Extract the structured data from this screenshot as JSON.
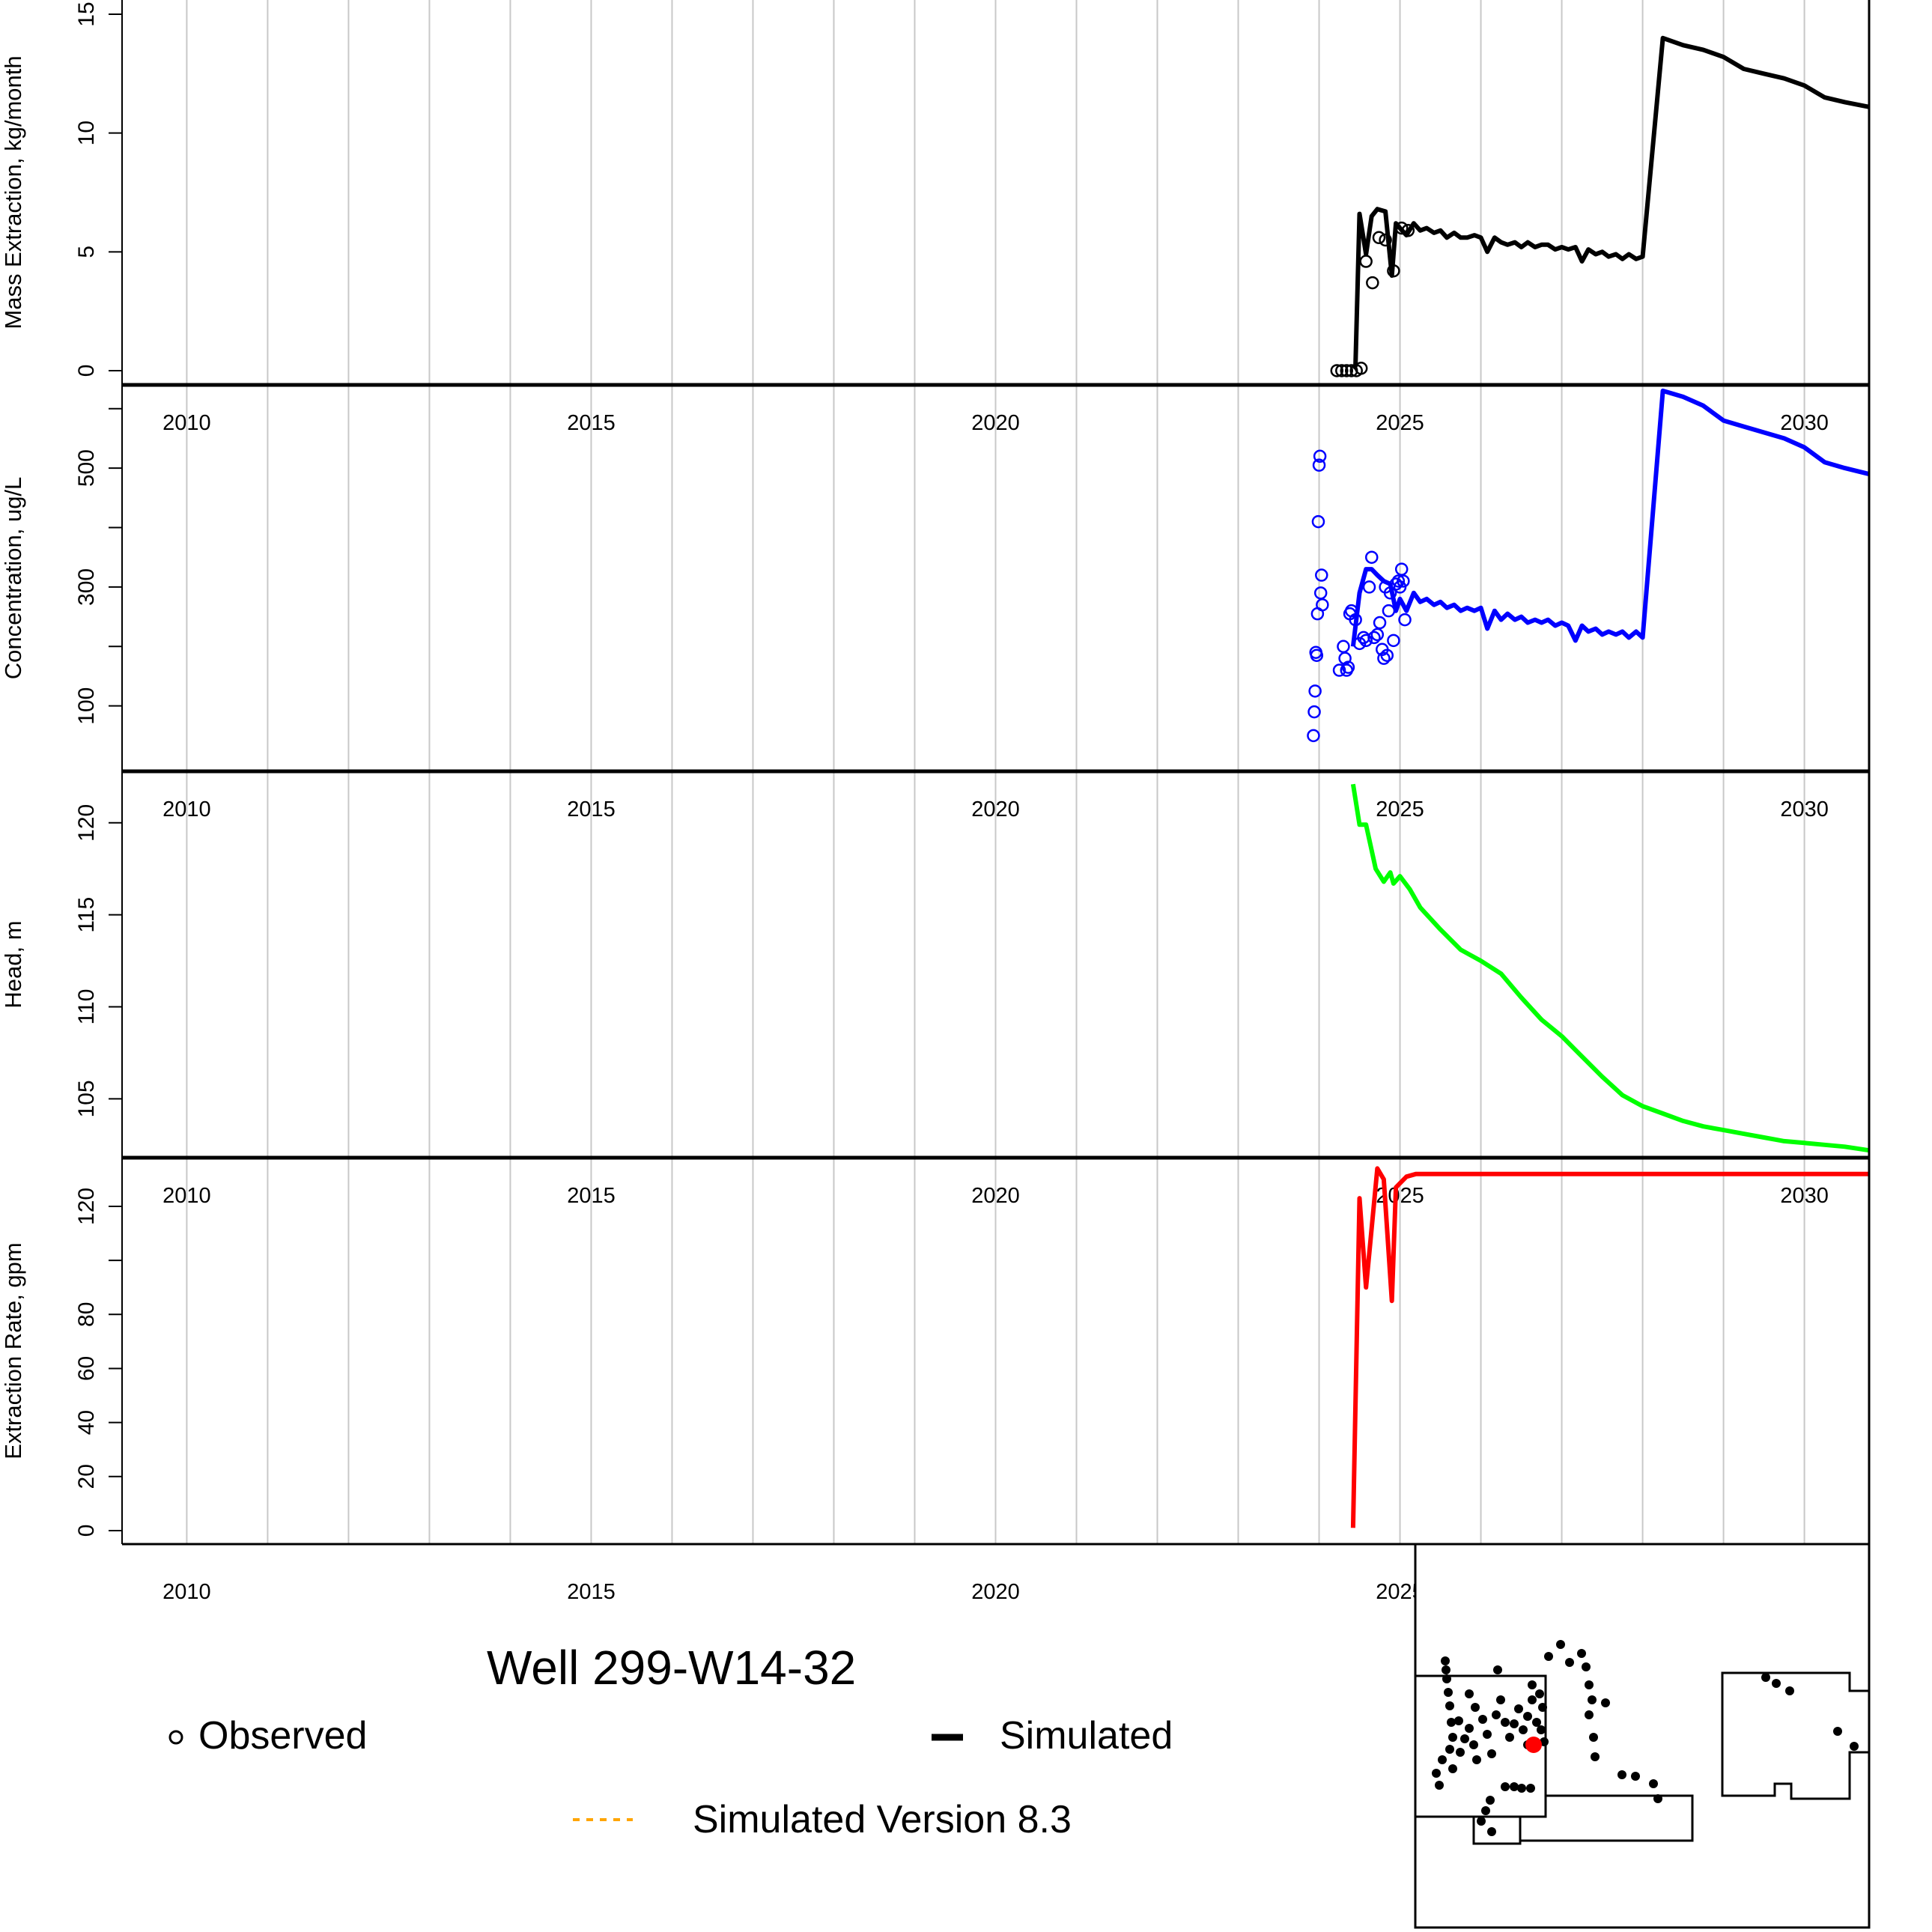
{
  "title": "Well 299-W14-32",
  "legend": {
    "observed": "Observed",
    "simulated": "Simulated",
    "simulated_v83": "Simulated Version 8.3",
    "v83_color": "#FFA500"
  },
  "year_labels": [
    "2010",
    "2015",
    "2020",
    "2025",
    "2030"
  ],
  "chart_data": [
    {
      "type": "line",
      "ylabel": "Mass Extraction, kg/month",
      "xlim": [
        2009.2,
        2030.8
      ],
      "ylim": [
        -0.6,
        15.6
      ],
      "yticks": [
        0,
        5,
        10,
        15
      ],
      "ytick_labels": [
        "0",
        "5",
        "10",
        "15"
      ],
      "grid": "vertical-yearly",
      "color": "#000000",
      "observed": {
        "x": [
          2024.22,
          2024.28,
          2024.34,
          2024.4,
          2024.46,
          2024.52,
          2024.58,
          2024.66,
          2024.74,
          2024.82,
          2024.92,
          2025.02,
          2025.1
        ],
        "y": [
          0.0,
          0.0,
          0.0,
          0.0,
          0.0,
          0.1,
          4.6,
          3.7,
          5.6,
          5.5,
          4.2,
          6.0,
          5.9
        ]
      },
      "simulated": {
        "x": [
          2024.42,
          2024.45,
          2024.5,
          2024.58,
          2024.65,
          2024.72,
          2024.82,
          2024.9,
          2024.95,
          2025.0,
          2025.08,
          2025.17,
          2025.25,
          2025.33,
          2025.42,
          2025.5,
          2025.58,
          2025.67,
          2025.75,
          2025.83,
          2025.92,
          2026.0,
          2026.08,
          2026.17,
          2026.25,
          2026.33,
          2026.42,
          2026.5,
          2026.58,
          2026.67,
          2026.75,
          2026.83,
          2026.92,
          2027.0,
          2027.08,
          2027.17,
          2027.25,
          2027.33,
          2027.42,
          2027.5,
          2027.58,
          2027.67,
          2027.75,
          2027.83,
          2027.92,
          2028.0,
          2028.25,
          2028.5,
          2028.75,
          2029.0,
          2029.25,
          2029.5,
          2029.75,
          2030.0,
          2030.25,
          2030.5,
          2030.8
        ],
        "y": [
          0.1,
          0.2,
          6.6,
          4.9,
          6.5,
          6.8,
          6.7,
          4.0,
          6.2,
          6.0,
          5.7,
          6.2,
          5.9,
          6.0,
          5.8,
          5.9,
          5.6,
          5.8,
          5.6,
          5.6,
          5.7,
          5.6,
          5.0,
          5.6,
          5.4,
          5.3,
          5.4,
          5.2,
          5.4,
          5.2,
          5.3,
          5.3,
          5.1,
          5.2,
          5.1,
          5.2,
          4.6,
          5.1,
          4.9,
          5.0,
          4.8,
          4.9,
          4.7,
          4.9,
          4.7,
          4.8,
          14.0,
          13.7,
          13.5,
          13.2,
          12.7,
          12.5,
          12.3,
          12.0,
          11.5,
          11.3,
          11.1
        ]
      }
    },
    {
      "type": "line",
      "ylabel": "Concentration, ug/L",
      "xlim": [
        2009.2,
        2030.8
      ],
      "ylim": [
        -10,
        640
      ],
      "yticks": [
        100,
        200,
        300,
        400,
        500,
        600
      ],
      "ytick_labels": [
        "100",
        "",
        "300",
        "",
        "500",
        ""
      ],
      "grid": "vertical-yearly",
      "color": "#0000FF",
      "observed": {
        "x": [
          2023.93,
          2023.94,
          2023.95,
          2023.96,
          2023.97,
          2023.98,
          2023.99,
          2024.0,
          2024.01,
          2024.02,
          2024.03,
          2024.04,
          2024.25,
          2024.3,
          2024.32,
          2024.34,
          2024.36,
          2024.38,
          2024.4,
          2024.45,
          2024.5,
          2024.55,
          2024.58,
          2024.62,
          2024.65,
          2024.68,
          2024.72,
          2024.75,
          2024.78,
          2024.8,
          2024.82,
          2024.84,
          2024.86,
          2024.88,
          2024.92,
          2024.95,
          2024.98,
          2025.0,
          2025.02,
          2025.04,
          2025.06
        ],
        "y": [
          50,
          90,
          125,
          190,
          185,
          255,
          410,
          505,
          520,
          290,
          320,
          270,
          160,
          200,
          180,
          160,
          165,
          255,
          260,
          245,
          205,
          215,
          210,
          300,
          350,
          215,
          220,
          240,
          195,
          180,
          300,
          185,
          260,
          290,
          210,
          305,
          310,
          300,
          330,
          310,
          245
        ],
        "y_note": "scale runs 100-600 (ticks 100,300,500 labeled)"
      },
      "simulated": {
        "x": [
          2024.42,
          2024.5,
          2024.58,
          2024.65,
          2024.72,
          2024.8,
          2024.88,
          2024.95,
          2025.0,
          2025.08,
          2025.17,
          2025.25,
          2025.33,
          2025.42,
          2025.5,
          2025.58,
          2025.67,
          2025.75,
          2025.83,
          2025.92,
          2026.0,
          2026.08,
          2026.17,
          2026.25,
          2026.33,
          2026.42,
          2026.5,
          2026.58,
          2026.67,
          2026.75,
          2026.83,
          2026.92,
          2027.0,
          2027.08,
          2027.17,
          2027.25,
          2027.33,
          2027.42,
          2027.5,
          2027.58,
          2027.67,
          2027.75,
          2027.83,
          2027.92,
          2028.0,
          2028.25,
          2028.5,
          2028.75,
          2029.0,
          2029.25,
          2029.5,
          2029.75,
          2030.0,
          2030.25,
          2030.5,
          2030.8
        ],
        "y": [
          200,
          290,
          330,
          330,
          320,
          310,
          305,
          260,
          280,
          260,
          290,
          275,
          280,
          270,
          275,
          265,
          270,
          260,
          265,
          260,
          265,
          230,
          260,
          245,
          255,
          245,
          250,
          240,
          245,
          240,
          245,
          235,
          240,
          235,
          210,
          235,
          225,
          230,
          220,
          225,
          220,
          225,
          215,
          225,
          215,
          630,
          620,
          605,
          580,
          570,
          560,
          550,
          535,
          510,
          500,
          490
        ]
      }
    },
    {
      "type": "line",
      "ylabel": "Head, m",
      "xlim": [
        2009.2,
        2030.8
      ],
      "ylim": [
        101.8,
        122.8
      ],
      "yticks": [
        105,
        110,
        115,
        120
      ],
      "ytick_labels": [
        "105",
        "110",
        "115",
        "120"
      ],
      "grid": "vertical-yearly",
      "color": "#00FF00",
      "simulated": {
        "x": [
          2024.42,
          2024.5,
          2024.58,
          2024.7,
          2024.8,
          2024.88,
          2024.92,
          2025.0,
          2025.12,
          2025.25,
          2025.5,
          2025.75,
          2026.0,
          2026.25,
          2026.5,
          2026.75,
          2027.0,
          2027.25,
          2027.5,
          2027.75,
          2028.0,
          2028.25,
          2028.5,
          2028.75,
          2029.0,
          2029.25,
          2029.5,
          2029.75,
          2030.0,
          2030.25,
          2030.5,
          2030.8
        ],
        "y": [
          122.1,
          119.9,
          119.9,
          117.5,
          116.8,
          117.3,
          116.7,
          117.1,
          116.4,
          115.4,
          114.2,
          113.1,
          112.5,
          111.8,
          110.5,
          109.3,
          108.4,
          107.3,
          106.2,
          105.2,
          104.6,
          104.2,
          103.8,
          103.5,
          103.3,
          103.1,
          102.9,
          102.7,
          102.6,
          102.5,
          102.4,
          102.2
        ]
      }
    },
    {
      "type": "line",
      "ylabel": "Extraction Rate, gpm",
      "xlim": [
        2009.2,
        2030.8
      ],
      "ylim": [
        -5,
        138
      ],
      "yticks": [
        0,
        20,
        40,
        60,
        80,
        100,
        120
      ],
      "ytick_labels": [
        "0",
        "20",
        "40",
        "60",
        "80",
        "",
        "120"
      ],
      "grid": "vertical-yearly",
      "color": "#FF0000",
      "simulated": {
        "x": [
          2024.42,
          2024.5,
          2024.58,
          2024.72,
          2024.8,
          2024.9,
          2024.95,
          2025.08,
          2025.2,
          2025.5,
          2026.0,
          2027.0,
          2028.0,
          2029.0,
          2030.0,
          2030.8
        ],
        "y": [
          1,
          123,
          90,
          134,
          130,
          85,
          127,
          131,
          132,
          132,
          132,
          132,
          132,
          132,
          132,
          132
        ]
      }
    }
  ]
}
